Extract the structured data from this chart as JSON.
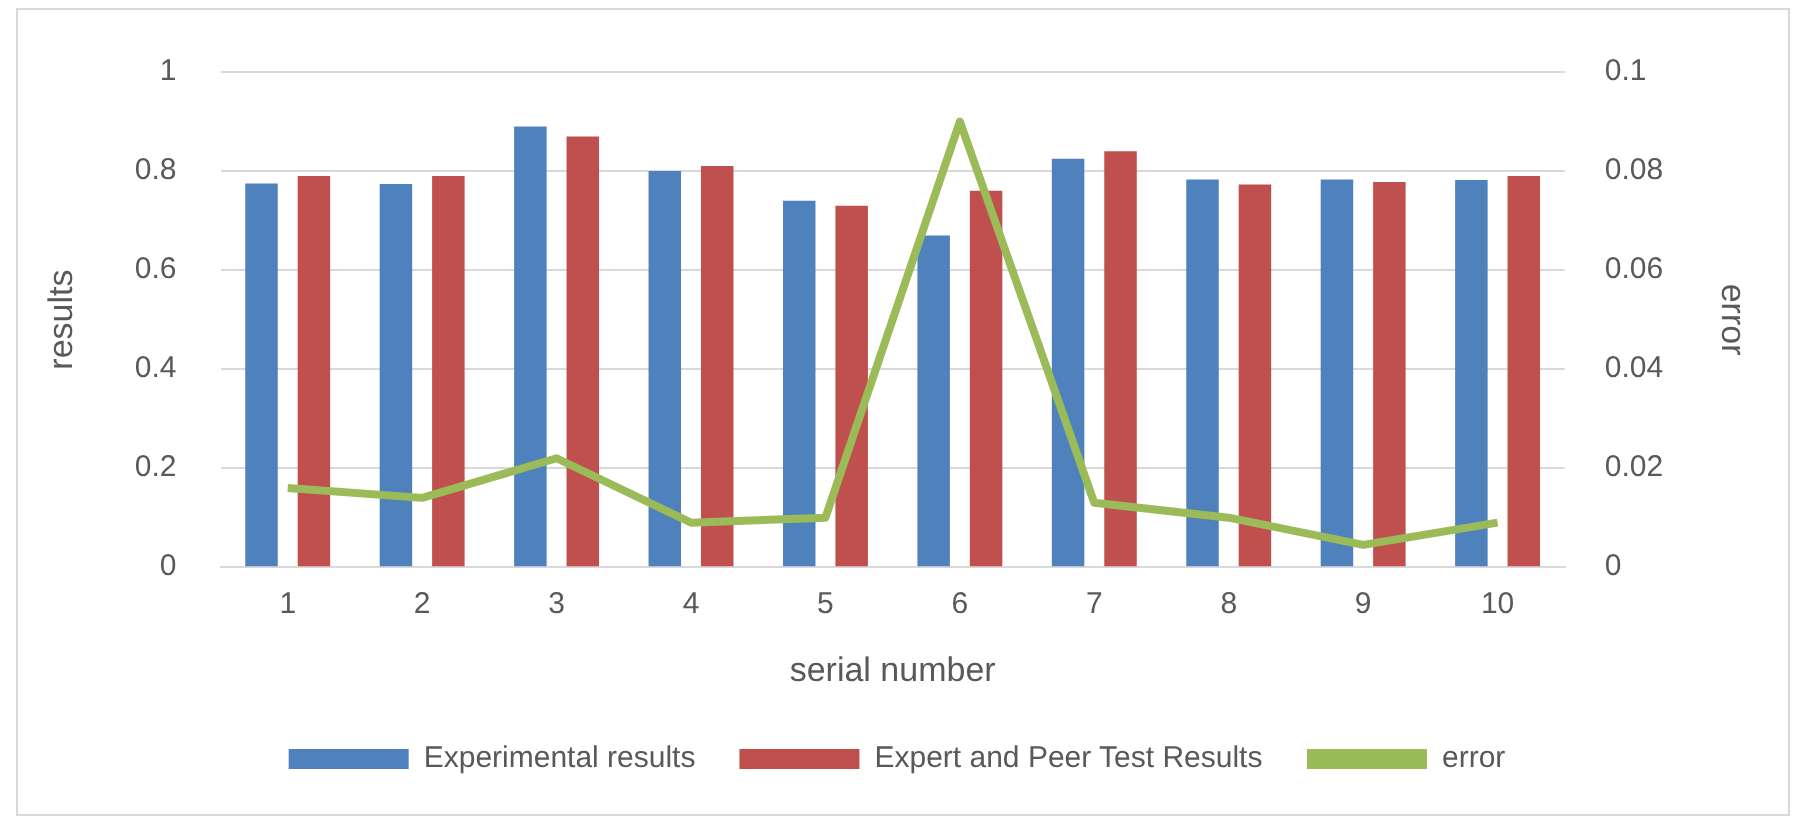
{
  "chart_data": {
    "type": "bar",
    "categories": [
      "1",
      "2",
      "3",
      "4",
      "5",
      "6",
      "7",
      "8",
      "9",
      "10"
    ],
    "xlabel": "serial number",
    "ylabel": "results",
    "y2label": "error",
    "series": [
      {
        "name": "Experimental results",
        "color": "#4f81bd",
        "values": [
          0.775,
          0.774,
          0.89,
          0.8,
          0.74,
          0.67,
          0.825,
          0.783,
          0.783,
          0.782
        ]
      },
      {
        "name": "Expert and Peer Test Results",
        "color": "#c0504d",
        "values": [
          0.79,
          0.79,
          0.87,
          0.81,
          0.73,
          0.76,
          0.84,
          0.773,
          0.778,
          0.79
        ]
      },
      {
        "name": "error",
        "type": "line",
        "axis": "y2",
        "color": "#9bbb59",
        "values": [
          0.016,
          0.014,
          0.022,
          0.009,
          0.01,
          0.09,
          0.013,
          0.01,
          0.0045,
          0.009
        ]
      }
    ],
    "ylim": [
      0,
      1
    ],
    "yticks": [
      0,
      0.2,
      0.4,
      0.6,
      0.8,
      1
    ],
    "y2lim": [
      0,
      0.1
    ],
    "y2ticks": [
      0,
      0.02,
      0.04,
      0.06,
      0.08,
      0.1
    ],
    "grid": "y",
    "legend": "bottom",
    "marker": "none"
  }
}
